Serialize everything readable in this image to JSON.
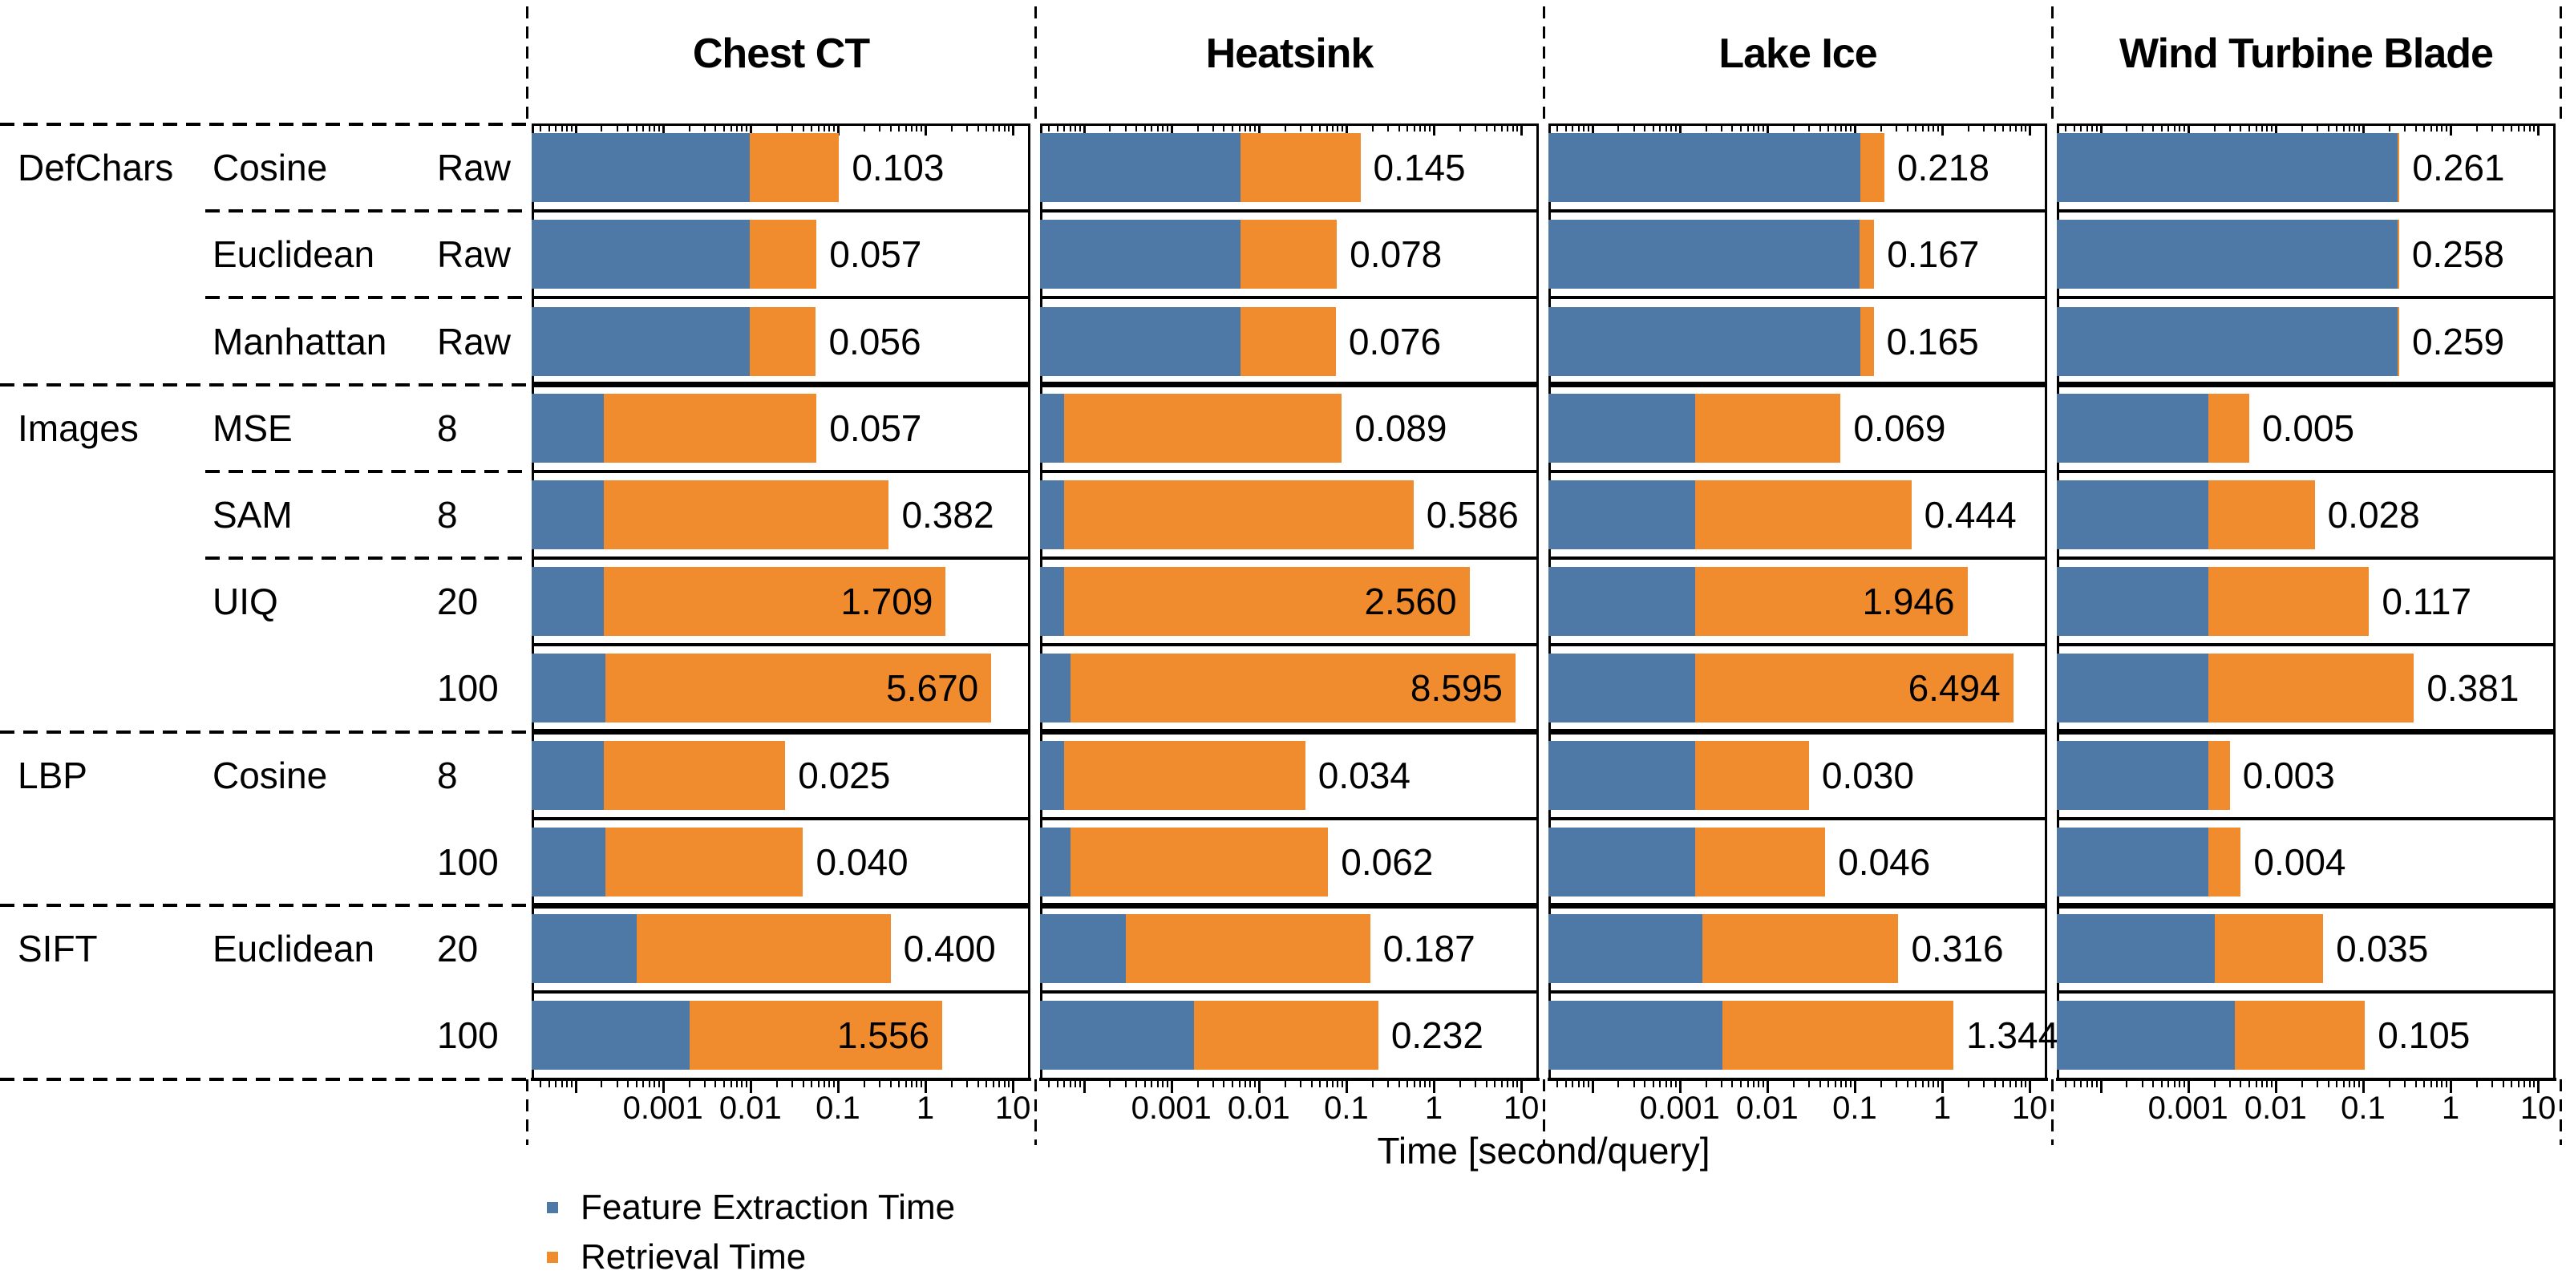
{
  "figure": {
    "xlabel": "Time [second/query]",
    "column_headers": [
      "Chest CT",
      "Heatsink",
      "Lake Ice",
      "Wind Turbine Blade"
    ],
    "legend": [
      {
        "label": "Feature Extraction Time",
        "color": "#4e79a7"
      },
      {
        "label": "Retrieval Time",
        "color": "#f08c2e"
      }
    ],
    "colors": {
      "feature": "#4e79a7",
      "retrieval": "#f08c2e",
      "text": "#000000",
      "background": "#ffffff"
    }
  },
  "chart_data": {
    "type": "bar",
    "orientation": "horizontal",
    "stacked": true,
    "x_scale": "log",
    "xlabel": "Time [second/query]",
    "axis": {
      "min": 3.16e-05,
      "max": 15.8,
      "tick_values": [
        0.001,
        0.01,
        0.1,
        1,
        10
      ],
      "tick_labels": [
        "0.001",
        "0.01",
        "0.1",
        "1",
        "10"
      ],
      "unlabeled_major_ticks": [
        0.0001
      ]
    },
    "datasets": [
      "Chest CT",
      "Heatsink",
      "Lake Ice",
      "Wind Turbine Blade"
    ],
    "series_names": [
      "Feature Extraction Time",
      "Retrieval Time"
    ],
    "rows": [
      {
        "group": "DefChars",
        "metric": "Cosine",
        "param": "Raw",
        "totals": [
          0.103,
          0.145,
          0.218,
          0.261
        ],
        "feature_extraction_est": [
          0.0099,
          0.0062,
          0.115,
          0.25
        ]
      },
      {
        "group": "",
        "metric": "Euclidean",
        "param": "Raw",
        "totals": [
          0.057,
          0.078,
          0.167,
          0.258
        ],
        "feature_extraction_est": [
          0.0099,
          0.0062,
          0.114,
          0.25
        ]
      },
      {
        "group": "",
        "metric": "Manhattan",
        "param": "Raw",
        "totals": [
          0.056,
          0.076,
          0.165,
          0.259
        ],
        "feature_extraction_est": [
          0.0099,
          0.0062,
          0.115,
          0.25
        ]
      },
      {
        "group": "Images",
        "metric": "MSE",
        "param": "8",
        "totals": [
          0.057,
          0.089,
          0.069,
          0.005
        ],
        "feature_extraction_est": [
          0.00021,
          6e-05,
          0.0015,
          0.0017
        ]
      },
      {
        "group": "",
        "metric": "SAM",
        "param": "8",
        "totals": [
          0.382,
          0.586,
          0.444,
          0.028
        ],
        "feature_extraction_est": [
          0.00021,
          6e-05,
          0.0015,
          0.0017
        ]
      },
      {
        "group": "",
        "metric": "UIQ",
        "param": "20",
        "totals": [
          1.709,
          2.56,
          1.946,
          0.117
        ],
        "feature_extraction_est": [
          0.00021,
          6e-05,
          0.0015,
          0.0017
        ]
      },
      {
        "group": "",
        "metric": "",
        "param": "100",
        "totals": [
          5.67,
          8.595,
          6.494,
          0.381
        ],
        "feature_extraction_est": [
          0.00022,
          7e-05,
          0.0015,
          0.0017
        ]
      },
      {
        "group": "LBP",
        "metric": "Cosine",
        "param": "8",
        "totals": [
          0.025,
          0.034,
          0.03,
          0.003
        ],
        "feature_extraction_est": [
          0.00021,
          6e-05,
          0.0015,
          0.0017
        ]
      },
      {
        "group": "",
        "metric": "",
        "param": "100",
        "totals": [
          0.04,
          0.062,
          0.046,
          0.004
        ],
        "feature_extraction_est": [
          0.00022,
          7e-05,
          0.0015,
          0.0017
        ]
      },
      {
        "group": "SIFT",
        "metric": "Euclidean",
        "param": "20",
        "totals": [
          0.4,
          0.187,
          0.316,
          0.035
        ],
        "feature_extraction_est": [
          0.0005,
          0.0003,
          0.0018,
          0.002
        ]
      },
      {
        "group": "",
        "metric": "",
        "param": "100",
        "totals": [
          1.556,
          0.232,
          1.344,
          0.105
        ],
        "feature_extraction_est": [
          0.002,
          0.0018,
          0.0031,
          0.0034
        ]
      }
    ],
    "value_label_decimals": 3,
    "group_separator_after_rows": [
      3,
      7,
      9
    ],
    "in_group_dashed_after_rows": [
      1,
      2,
      4,
      5
    ],
    "legend_position": "bottom-left",
    "grid": false
  }
}
